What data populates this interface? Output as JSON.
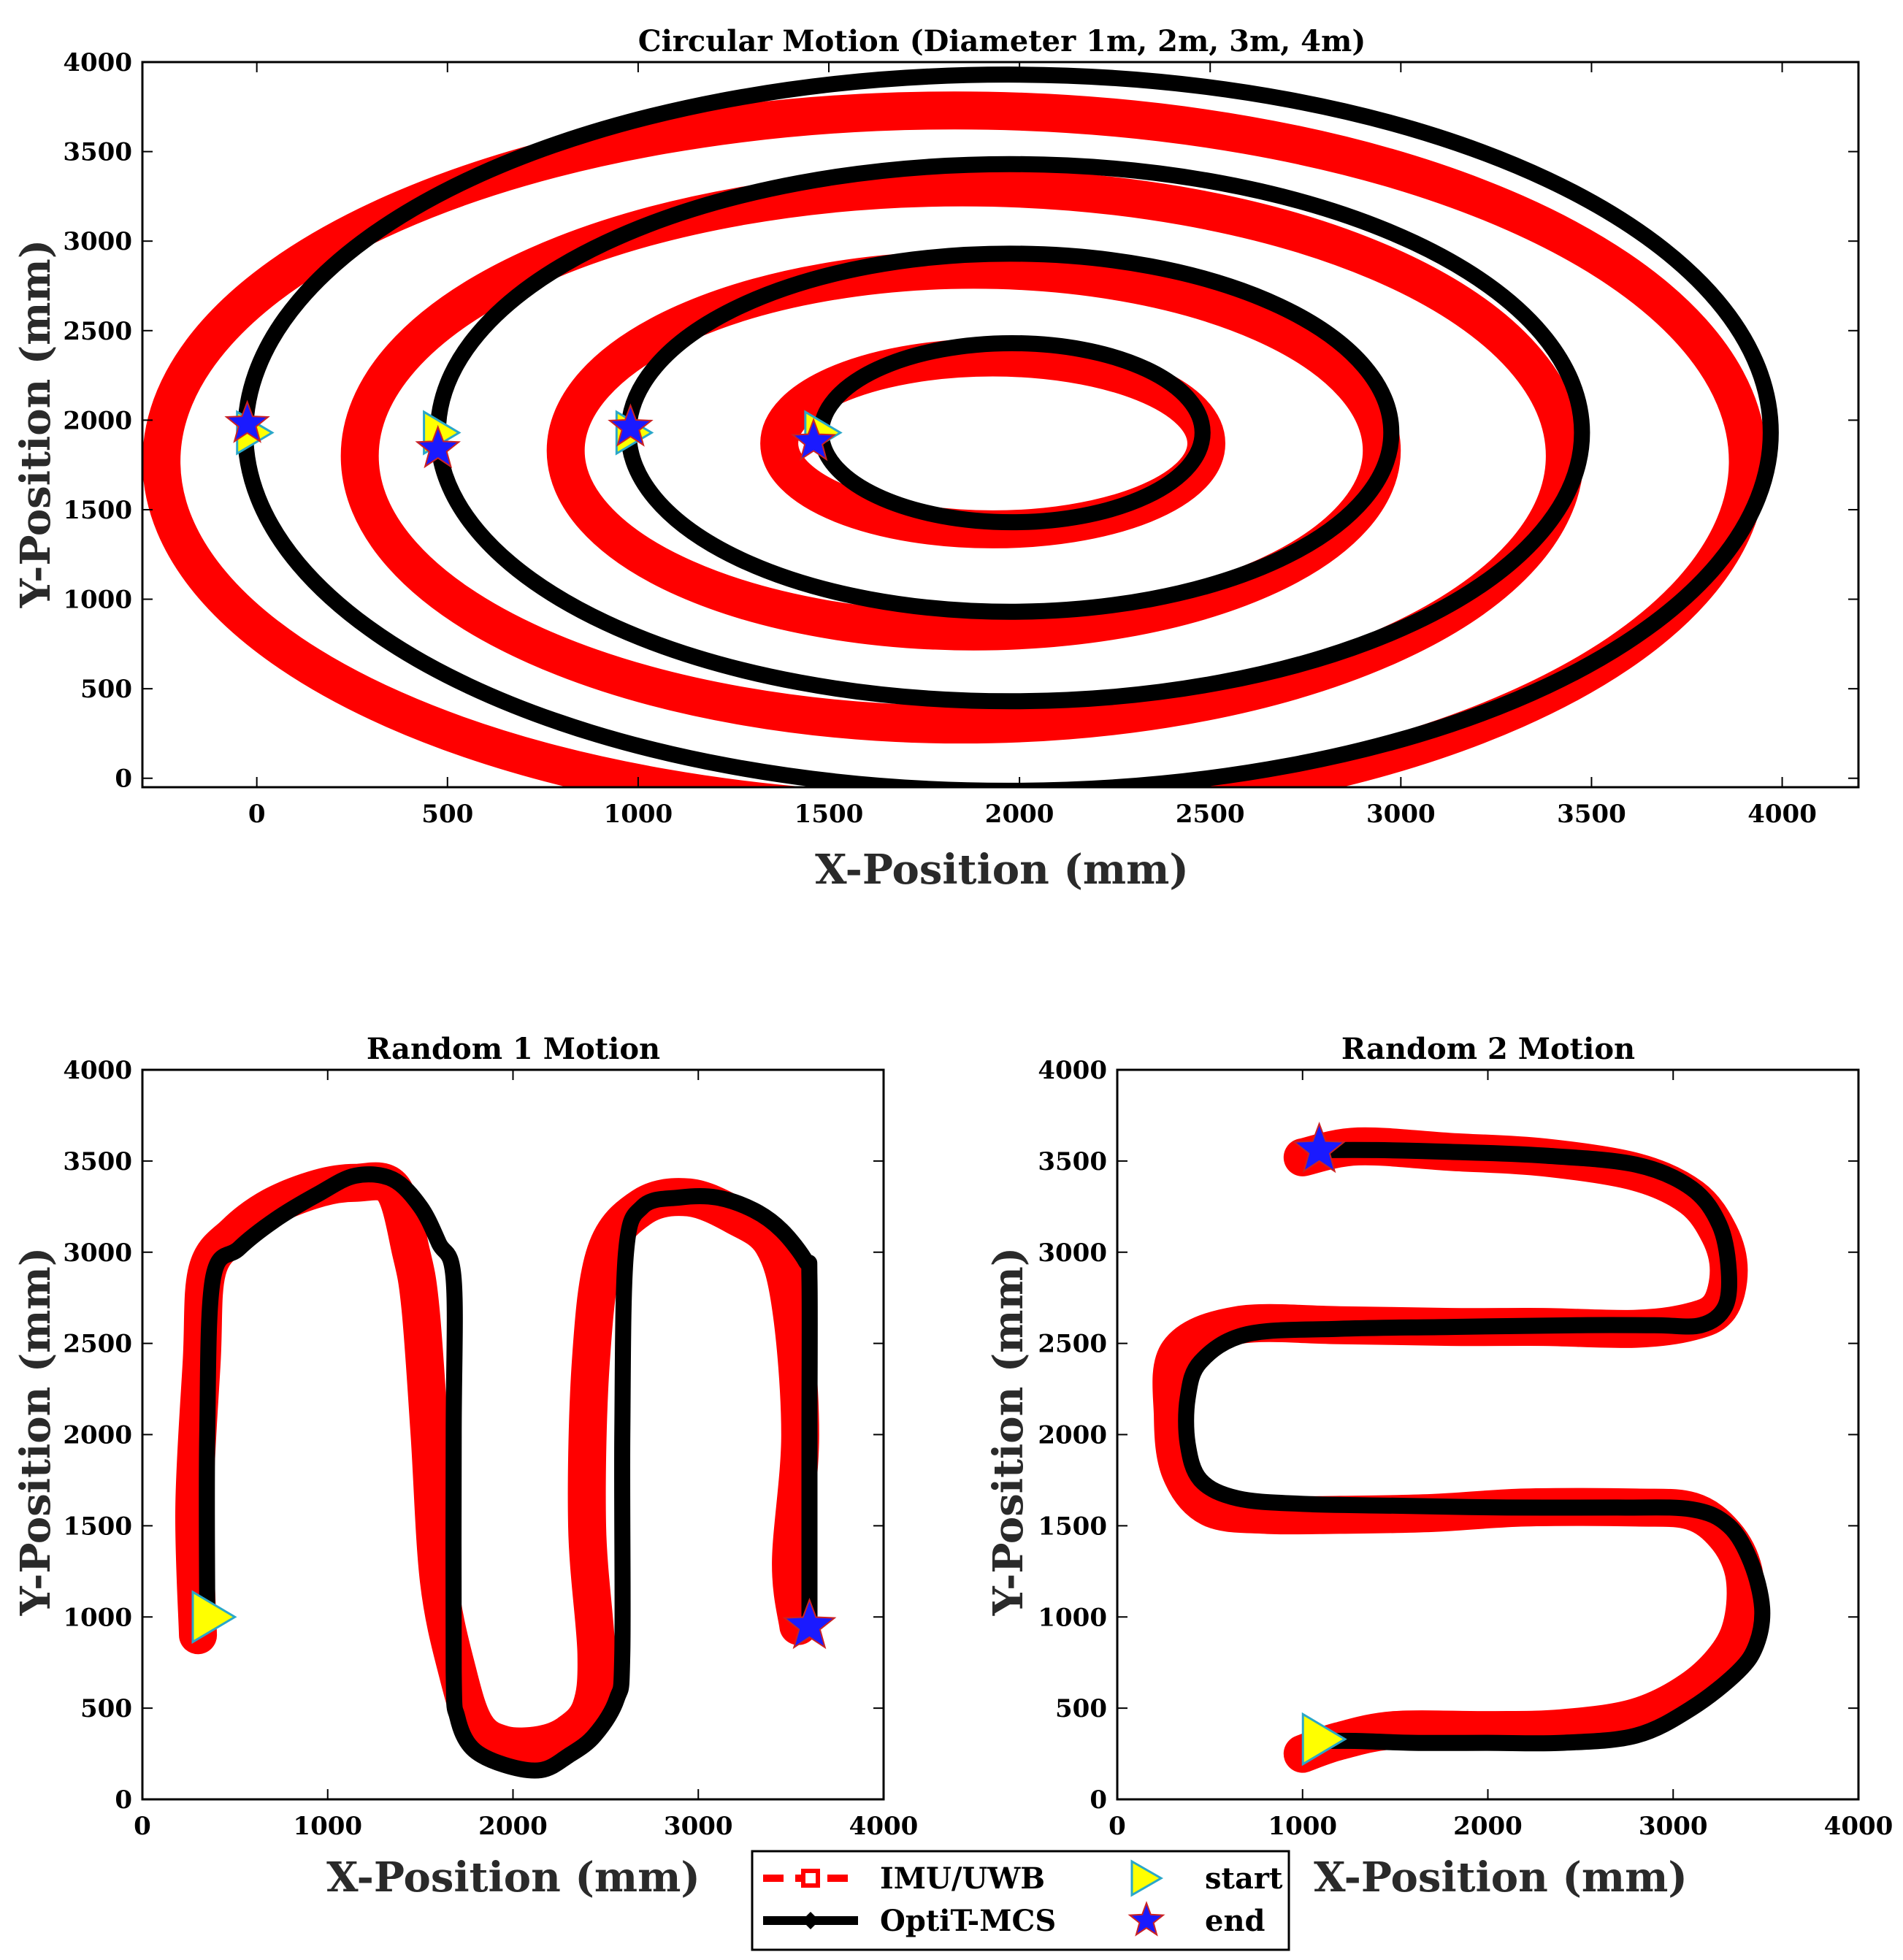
{
  "legend": {
    "placement": "bottom-center",
    "entries": [
      {
        "label": "IMU/UWB",
        "color": "#ff0000",
        "marker": "square-outline"
      },
      {
        "label": "OptiT-MCS",
        "color": "#000000",
        "marker": "diamond"
      },
      {
        "label": "start",
        "color": "#ffff00",
        "marker": "triangle-right"
      },
      {
        "label": "end",
        "color": "#1a1aff",
        "marker": "star"
      }
    ]
  },
  "chart_data": [
    {
      "type": "line",
      "title": "Circular Motion (Diameter 1m, 2m, 3m, 4m)",
      "xlabel": "X-Position (mm)",
      "ylabel": "Y-Position (mm)",
      "xlim": [
        -300,
        4200
      ],
      "ylim": [
        -50,
        4000
      ],
      "xticks": [
        0,
        500,
        1000,
        1500,
        2000,
        2500,
        3000,
        3500,
        4000
      ],
      "yticks": [
        0,
        500,
        1000,
        1500,
        2000,
        2500,
        3000,
        3500,
        4000
      ],
      "grid": false,
      "series": [
        {
          "name": "OptiT-MCS",
          "color": "#000000",
          "kind": "ellipses",
          "ellipses": [
            {
              "cx": 1980,
              "cy": 1930,
              "rx": 500,
              "ry": 500
            },
            {
              "cx": 1975,
              "cy": 1930,
              "rx": 1000,
              "ry": 1000
            },
            {
              "cx": 1975,
              "cy": 1930,
              "rx": 1500,
              "ry": 1500
            },
            {
              "cx": 1970,
              "cy": 1930,
              "rx": 2000,
              "ry": 2000
            }
          ]
        },
        {
          "name": "IMU/UWB",
          "color": "#ff0000",
          "kind": "ellipses",
          "ellipses": [
            {
              "cx": 1930,
              "cy": 1870,
              "rx": 560,
              "ry": 480
            },
            {
              "cx": 1880,
              "cy": 1830,
              "rx": 1070,
              "ry": 1010
            },
            {
              "cx": 1850,
              "cy": 1800,
              "rx": 1580,
              "ry": 1500
            },
            {
              "cx": 1830,
              "cy": 1770,
              "rx": 2080,
              "ry": 1960
            }
          ]
        }
      ],
      "start_points": [
        [
          1470,
          1930
        ],
        [
          975,
          1930
        ],
        [
          470,
          1930
        ],
        [
          -20,
          1930
        ]
      ],
      "end_points": [
        [
          1460,
          1880
        ],
        [
          980,
          1960
        ],
        [
          475,
          1840
        ],
        [
          -25,
          1980
        ]
      ]
    },
    {
      "type": "line",
      "title": "Random 1 Motion",
      "xlabel": "X-Position (mm)",
      "ylabel": "Y-Position (mm)",
      "xlim": [
        0,
        4000
      ],
      "ylim": [
        0,
        4000
      ],
      "xticks": [
        0,
        1000,
        2000,
        3000,
        4000
      ],
      "yticks": [
        0,
        500,
        1000,
        1500,
        2000,
        2500,
        3000,
        3500,
        4000
      ],
      "grid": false,
      "series": [
        {
          "name": "OptiT-MCS",
          "color": "#000000",
          "x": [
            350,
            350,
            380,
            520,
            720,
            950,
            1150,
            1350,
            1500,
            1600,
            1680,
            1680,
            1680,
            1700,
            1780,
            1950,
            2150,
            2300,
            2440,
            2560,
            2590,
            2590,
            2610,
            2700,
            2900,
            3100,
            3300,
            3450,
            3580,
            3600,
            3600,
            3600
          ],
          "y": [
            1000,
            2000,
            2850,
            3020,
            3180,
            3320,
            3420,
            3400,
            3250,
            3050,
            2850,
            2000,
            700,
            450,
            280,
            190,
            160,
            240,
            350,
            550,
            800,
            2000,
            3000,
            3250,
            3300,
            3300,
            3230,
            3120,
            2950,
            2850,
            2000,
            950
          ]
        },
        {
          "name": "IMU/UWB",
          "color": "#ff0000",
          "x": [
            300,
            280,
            320,
            350,
            500,
            700,
            950,
            1150,
            1350,
            1450,
            1500,
            1550,
            1600,
            1700,
            1800,
            1950,
            2150,
            2300,
            2420,
            2450,
            2400,
            2420,
            2500,
            2700,
            2950,
            3200,
            3400,
            3500,
            3550,
            3500,
            3540
          ],
          "y": [
            900,
            1600,
            2400,
            2900,
            3100,
            3250,
            3350,
            3380,
            3350,
            3000,
            2700,
            2000,
            1200,
            700,
            400,
            300,
            300,
            360,
            500,
            800,
            1500,
            2400,
            3000,
            3250,
            3300,
            3200,
            3050,
            2700,
            2000,
            1300,
            950
          ]
        }
      ],
      "start_points": [
        [
          350,
          1000
        ]
      ],
      "end_points": [
        [
          3600,
          950
        ]
      ]
    },
    {
      "type": "line",
      "title": "Random 2 Motion",
      "xlabel": "X-Position (mm)",
      "ylabel": "",
      "xlim": [
        0,
        4000
      ],
      "ylim": [
        0,
        4000
      ],
      "xticks": [
        0,
        1000,
        2000,
        3000,
        4000
      ],
      "yticks": [
        0,
        500,
        1000,
        1500,
        2000,
        2500,
        3000,
        3500,
        4000
      ],
      "grid": false,
      "series": [
        {
          "name": "OptiT-MCS",
          "color": "#000000",
          "x": [
            1100,
            1400,
            1800,
            2300,
            2800,
            3100,
            3250,
            3300,
            3280,
            3150,
            2900,
            2500,
            1800,
            1200,
            700,
            450,
            380,
            380,
            450,
            650,
            1000,
            1500,
            2100,
            2700,
            3100,
            3300,
            3420,
            3480,
            3450,
            3350,
            3100,
            2800,
            2400,
            2000,
            1600,
            1300,
            1100
          ],
          "y": [
            3560,
            3560,
            3550,
            3530,
            3480,
            3350,
            3150,
            2900,
            2700,
            2600,
            2600,
            2600,
            2590,
            2580,
            2550,
            2400,
            2200,
            1950,
            1750,
            1650,
            1620,
            1610,
            1600,
            1600,
            1590,
            1500,
            1300,
            1050,
            850,
            700,
            500,
            350,
            310,
            310,
            310,
            320,
            320
          ]
        },
        {
          "name": "IMU/UWB",
          "color": "#ff0000",
          "x": [
            1000,
            1300,
            1800,
            2300,
            2800,
            3100,
            3250,
            3300,
            3250,
            3100,
            2800,
            2300,
            1800,
            1200,
            650,
            330,
            300,
            340,
            500,
            800,
            1200,
            1700,
            2200,
            2800,
            3100,
            3280,
            3380,
            3380,
            3300,
            3100,
            2800,
            2400,
            2000,
            1500,
            1200,
            1000
          ],
          "y": [
            3520,
            3580,
            3550,
            3520,
            3440,
            3300,
            3100,
            2900,
            2700,
            2620,
            2580,
            2590,
            2590,
            2600,
            2600,
            2450,
            2100,
            1800,
            1600,
            1560,
            1560,
            1570,
            1600,
            1600,
            1580,
            1450,
            1250,
            1000,
            800,
            600,
            450,
            390,
            380,
            380,
            320,
            250
          ]
        }
      ],
      "start_points": [
        [
          1080,
          330
        ]
      ],
      "end_points": [
        [
          1090,
          3560
        ]
      ]
    }
  ]
}
